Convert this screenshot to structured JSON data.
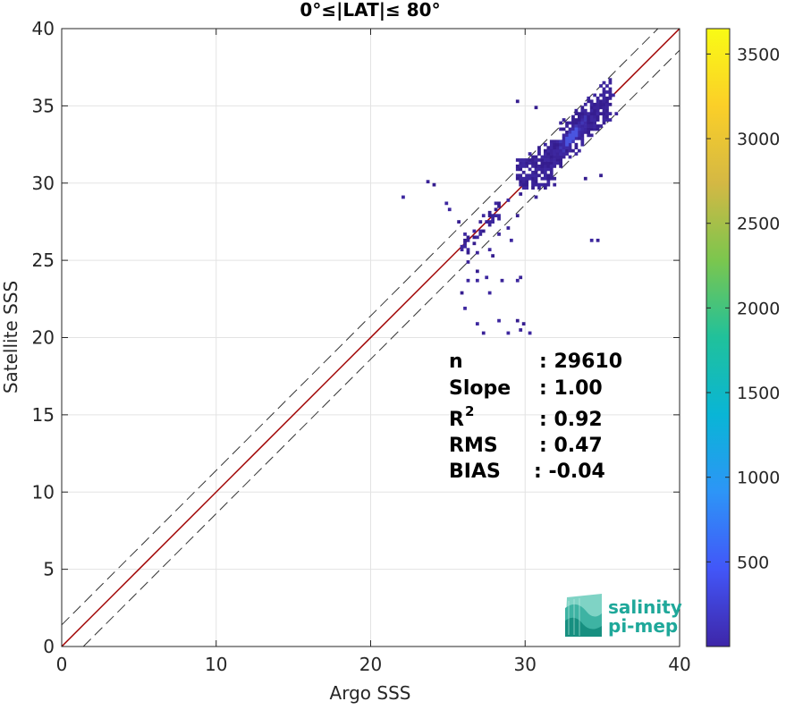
{
  "chart_data": {
    "type": "heatmap",
    "title": "0°≤|LAT|≤ 80°",
    "xlabel": "Argo SSS",
    "ylabel": "Satellite SSS",
    "xlim": [
      0,
      40
    ],
    "ylim": [
      0,
      40
    ],
    "xticks": [
      "0",
      "10",
      "20",
      "30",
      "40"
    ],
    "yticks": [
      "0",
      "5",
      "10",
      "15",
      "20",
      "25",
      "30",
      "35",
      "40"
    ],
    "grid": true,
    "reference_lines": [
      {
        "kind": "one-to-one",
        "slope": 1,
        "intercept": 0,
        "color": "#a00000",
        "style": "solid"
      },
      {
        "kind": "offset",
        "slope": 1,
        "intercept": 1.4,
        "color": "#333333",
        "style": "dashed"
      },
      {
        "kind": "offset",
        "slope": 1,
        "intercept": -1.4,
        "color": "#333333",
        "style": "dashed"
      }
    ],
    "density_clusters": [
      {
        "x": [
          32.6,
          33.2
        ],
        "y": [
          32.8,
          33.4
        ],
        "level": "high"
      },
      {
        "x": [
          31.5,
          34.0
        ],
        "y": [
          31.6,
          34.0
        ],
        "level": "mid"
      },
      {
        "x": [
          29.5,
          35.5
        ],
        "y": [
          29.5,
          35.5
        ],
        "level": "low"
      },
      {
        "x": [
          26.0,
          28.0
        ],
        "y": [
          26.0,
          28.0
        ],
        "level": "low"
      }
    ],
    "scattered_cells": [
      [
        22.0,
        29.0
      ],
      [
        23.6,
        30.0
      ],
      [
        24.0,
        29.9
      ],
      [
        24.8,
        28.5
      ],
      [
        25.0,
        28.1
      ],
      [
        25.5,
        27.3
      ],
      [
        25.8,
        25.6
      ],
      [
        26.2,
        25.3
      ],
      [
        26.5,
        26.0
      ],
      [
        26.9,
        25.4
      ],
      [
        26.2,
        24.9
      ],
      [
        27.5,
        25.6
      ],
      [
        27.9,
        25.1
      ],
      [
        28.2,
        26.5
      ],
      [
        27.6,
        27.8
      ],
      [
        28.1,
        28.6
      ],
      [
        28.8,
        27.0
      ],
      [
        29.0,
        26.2
      ],
      [
        28.9,
        28.9
      ],
      [
        29.3,
        27.9
      ],
      [
        26.7,
        24.2
      ],
      [
        27.4,
        23.9
      ],
      [
        29.6,
        23.9
      ],
      [
        29.3,
        23.5
      ],
      [
        28.4,
        23.5
      ],
      [
        26.8,
        23.5
      ],
      [
        26.1,
        23.6
      ],
      [
        25.9,
        22.8
      ],
      [
        26.0,
        21.8
      ],
      [
        26.8,
        20.9
      ],
      [
        27.2,
        20.1
      ],
      [
        28.1,
        21.0
      ],
      [
        28.7,
        20.2
      ],
      [
        29.3,
        21.0
      ],
      [
        29.8,
        20.9
      ],
      [
        30.1,
        20.1
      ],
      [
        27.6,
        22.9
      ],
      [
        29.5,
        20.3
      ],
      [
        34.2,
        26.1
      ],
      [
        34.5,
        26.1
      ],
      [
        30.5,
        34.7
      ],
      [
        29.3,
        35.1
      ],
      [
        35.7,
        34.4
      ],
      [
        35.5,
        35.6
      ],
      [
        34.8,
        30.3
      ],
      [
        33.9,
        30.1
      ],
      [
        31.9,
        29.8
      ]
    ],
    "colorbar": {
      "min": 0,
      "max": 3650,
      "ticks": [
        "500",
        "1000",
        "1500",
        "2000",
        "2500",
        "3000",
        "3500"
      ],
      "colors": [
        "#3e26a8",
        "#4256f8",
        "#2d95f7",
        "#09b5d6",
        "#20c19b",
        "#7bc64e",
        "#d4b844",
        "#fbcf28",
        "#f9fb15"
      ]
    },
    "stats": [
      {
        "label": "n",
        "value": ": 29610"
      },
      {
        "label": "Slope",
        "value": ": 1.00"
      },
      {
        "label": "R",
        "label_sup": "2",
        "value": ": 0.92"
      },
      {
        "label": "RMS",
        "value": ": 0.47"
      },
      {
        "label": "BIAS",
        "value": ": -0.04"
      }
    ]
  },
  "logo": {
    "line1": "salinity",
    "line2": "pi-mep",
    "color": "#1fa89a"
  }
}
